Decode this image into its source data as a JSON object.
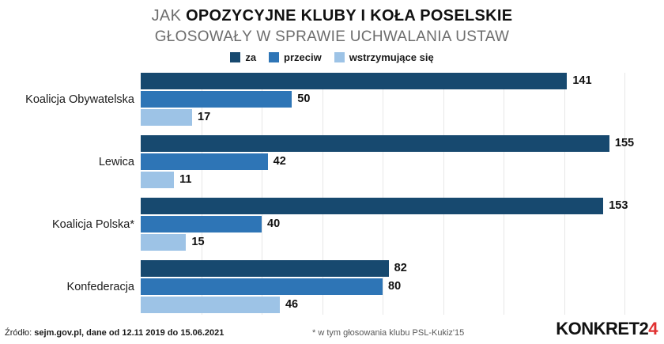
{
  "title": {
    "line1_prefix": "JAK ",
    "line1_bold": "OPOZYCYJNE KLUBY I KOŁA POSELSKIE",
    "line2": "GŁOSOWAŁY W SPRAWIE UCHWALANIA USTAW"
  },
  "chart_data": {
    "type": "bar",
    "orientation": "horizontal",
    "title": "Jak opozycyjne kluby i koła poselskie głosowały w sprawie uchwalania ustaw",
    "categories": [
      "Koalicja Obywatelska",
      "Lewica",
      "Koalicja Polska*",
      "Konfederacja"
    ],
    "series": [
      {
        "name": "za",
        "color": "#17496f",
        "values": [
          141,
          155,
          153,
          82
        ]
      },
      {
        "name": "przeciw",
        "color": "#2e75b6",
        "values": [
          50,
          42,
          40,
          80
        ]
      },
      {
        "name": "wstrzymujące się",
        "color": "#9dc3e6",
        "values": [
          17,
          11,
          15,
          46
        ]
      }
    ],
    "xlim": [
      0,
      160
    ],
    "grid": true,
    "grid_step": 20,
    "legend_position": "top",
    "value_labels": true
  },
  "footer": {
    "source_prefix": "Źródło: ",
    "source_bold": "sejm.gov.pl, dane od 12.11 2019 do 15.06.2021",
    "footnote": "* w tym głosowania klubu PSL-Kukiz'15",
    "logo_main": "KONKRET2",
    "logo_accent": "4"
  }
}
